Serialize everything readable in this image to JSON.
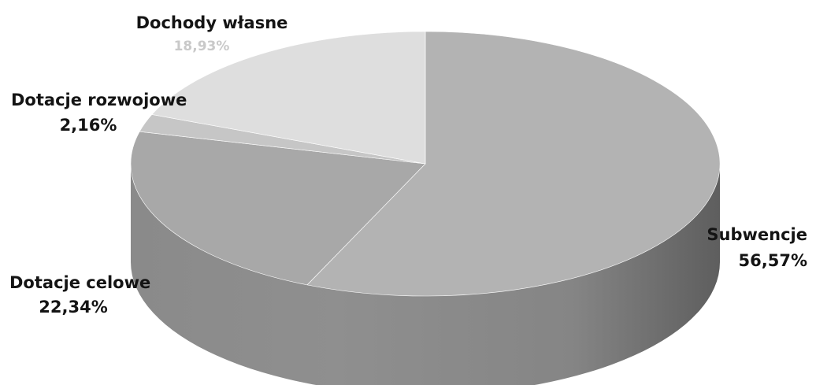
{
  "chart_data": {
    "type": "pie",
    "style": "3d",
    "slices": [
      {
        "name": "Subwencje",
        "value": 56.57,
        "value_label": "56,57%",
        "color": "#b3b3b3"
      },
      {
        "name": "Dotacje celowe",
        "value": 22.34,
        "value_label": "22,34%",
        "color": "#a8a8a8"
      },
      {
        "name": "Dotacje rozwojowe",
        "value": 2.16,
        "value_label": "2,16%",
        "color": "#c6c6c6"
      },
      {
        "name": "Dochody własne",
        "value": 18.93,
        "value_label": "18,93%",
        "color": "#dedede"
      }
    ]
  }
}
